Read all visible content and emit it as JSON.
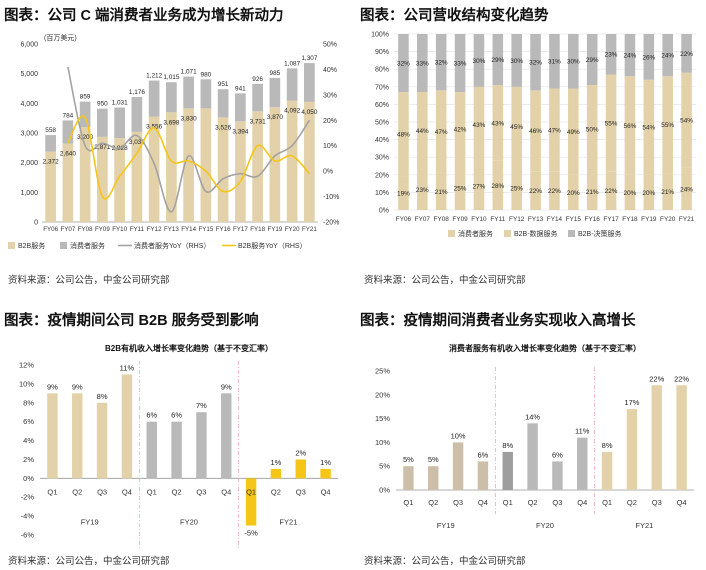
{
  "colors": {
    "beige": "#E3D2A9",
    "grey": "#B9B9B9",
    "grey_line": "#A3A3A3",
    "yellow": "#F5C518",
    "tan": "#CDBEA9",
    "darkgrey": "#9E9E9E",
    "axis": "#999999",
    "grid": "#E6E6E6"
  },
  "panels": [
    {
      "title": "图表：公司 C 端消费者业务成为增长新动力",
      "source": "资料来源：公司公告，中金公司研究部"
    },
    {
      "title": "图表：公司营收结构变化趋势",
      "source": "资料来源：公司公告，中金公司研究部"
    },
    {
      "title": "图表：疫情期间公司 B2B 服务受到影响",
      "source": "资料来源：公司公告，中金公司研究部"
    },
    {
      "title": "图表：疫情期间消费者业务实现收入高增长",
      "source": "资料来源：公司公告，中金公司研究部"
    }
  ],
  "chart_data": [
    {
      "type": "bar",
      "title": "",
      "unit_label": "(百万美元)",
      "categories": [
        "FY06",
        "FY07",
        "FY08",
        "FY09",
        "FY10",
        "FY11",
        "FY12",
        "FY13",
        "FY14",
        "FY15",
        "FY16",
        "FY17",
        "FY18",
        "FY19",
        "FY20",
        "FY21"
      ],
      "stacked": true,
      "series": [
        {
          "name": "B2B服务",
          "values": [
            2372,
            2640,
            3200,
            2871,
            2828,
            3038,
            3556,
            3698,
            3830,
            3830,
            3526,
            3394,
            3731,
            3870,
            4092,
            4050
          ]
        },
        {
          "name": "消费者服务",
          "values": [
            558,
            784,
            859,
            950,
            1031,
            1176,
            1212,
            1015,
            1071,
            980,
            951,
            941,
            926,
            985,
            1087,
            1307
          ]
        }
      ],
      "bar_labels_top": [
        "558",
        "784",
        "859",
        "950",
        "1,031",
        "1,176",
        "1,212",
        "1,015",
        "1,071",
        "980",
        "951",
        "941",
        "926",
        "985",
        "1,087",
        "1,307"
      ],
      "bar_labels_inner": [
        "2,372",
        "2,640",
        "3,200",
        "2,871",
        "2,828",
        "3,038",
        "3,556",
        "3,698",
        "3,830",
        "",
        "3,526",
        "3,394",
        "3,731",
        "3,870",
        "4,092",
        "4,050"
      ],
      "lines": [
        {
          "name": "消费者服务YoY（RHS）",
          "values": [
            null,
            41,
            10,
            11,
            9,
            14,
            3,
            -16,
            6,
            -8,
            -3,
            -1,
            -2,
            6,
            10,
            20
          ]
        },
        {
          "name": "B2B服务YoY（RHS）",
          "values": [
            null,
            11,
            21,
            -10,
            -2,
            7,
            17,
            4,
            4,
            0,
            -8,
            -4,
            10,
            4,
            6,
            -1
          ]
        }
      ],
      "y_left": {
        "min": 0,
        "max": 6000,
        "step": 1000,
        "ticks": [
          "0",
          "1,000",
          "2,000",
          "3,000",
          "4,000",
          "5,000",
          "6,000"
        ]
      },
      "y_right": {
        "min": -20,
        "max": 50,
        "step": 10,
        "ticks": [
          "-20%",
          "-10%",
          "0%",
          "10%",
          "20%",
          "30%",
          "40%",
          "50%"
        ]
      },
      "legend": [
        "B2B服务",
        "消费者服务",
        "消费者服务YoY（RHS）",
        "B2B服务YoY（RHS）"
      ]
    },
    {
      "type": "bar",
      "title": "",
      "stacked_percent": true,
      "categories": [
        "FY06",
        "FY07",
        "FY08",
        "FY09",
        "FY10",
        "FY11",
        "FY12",
        "FY13",
        "FY14",
        "FY15",
        "FY16",
        "FY17",
        "FY18",
        "FY19",
        "FY20",
        "FY21"
      ],
      "series": [
        {
          "name": "消费者服务",
          "values": [
            19,
            23,
            21,
            25,
            27,
            28,
            25,
            22,
            22,
            20,
            21,
            22,
            20,
            20,
            21,
            24
          ]
        },
        {
          "name": "B2B-数据服务",
          "values": [
            48,
            44,
            47,
            42,
            43,
            43,
            45,
            46,
            47,
            49,
            50,
            55,
            56,
            54,
            55,
            54
          ]
        },
        {
          "name": "B2B-决策服务",
          "values": [
            32,
            33,
            32,
            33,
            30,
            29,
            30,
            32,
            31,
            30,
            29,
            23,
            24,
            26,
            24,
            22
          ]
        }
      ],
      "y": {
        "min": 0,
        "max": 100,
        "step": 10,
        "ticks": [
          "0%",
          "10%",
          "20%",
          "30%",
          "40%",
          "50%",
          "60%",
          "70%",
          "80%",
          "90%",
          "100%"
        ]
      },
      "legend": [
        "消费者服务",
        "B2B-数据服务",
        "B2B-决策服务"
      ]
    },
    {
      "type": "bar",
      "title": "B2B有机收入增长率变化趋势（基于不变汇率）",
      "categories": [
        "Q1",
        "Q2",
        "Q3",
        "Q4",
        "Q1",
        "Q2",
        "Q3",
        "Q4",
        "Q1",
        "Q2",
        "Q3",
        "Q4"
      ],
      "groups": [
        "FY19",
        "FY20",
        "FY21"
      ],
      "values": [
        9,
        9,
        8,
        11,
        6,
        6,
        7,
        9,
        -5,
        1,
        2,
        1
      ],
      "labels": [
        "9%",
        "9%",
        "8%",
        "11%",
        "6%",
        "6%",
        "7%",
        "9%",
        "-5%",
        "1%",
        "2%",
        "1%"
      ],
      "y": {
        "min": -6,
        "max": 12,
        "step": 2,
        "ticks": [
          "-6%",
          "-4%",
          "-2%",
          "0%",
          "2%",
          "4%",
          "6%",
          "8%",
          "10%",
          "12%"
        ]
      }
    },
    {
      "type": "bar",
      "title": "消费者服务有机收入增长率变化趋势（基于不变汇率）",
      "categories": [
        "Q1",
        "Q2",
        "Q3",
        "Q4",
        "Q1",
        "Q2",
        "Q3",
        "Q4",
        "Q1",
        "Q2",
        "Q3",
        "Q4"
      ],
      "groups": [
        "FY19",
        "FY20",
        "FY21"
      ],
      "values": [
        5,
        5,
        10,
        6,
        8,
        14,
        6,
        11,
        8,
        17,
        22,
        22
      ],
      "labels": [
        "5%",
        "5%",
        "10%",
        "6%",
        "8%",
        "14%",
        "6%",
        "11%",
        "8%",
        "17%",
        "22%",
        "22%"
      ],
      "y": {
        "min": 0,
        "max": 25,
        "step": 5,
        "ticks": [
          "0%",
          "5%",
          "10%",
          "15%",
          "20%",
          "25%"
        ]
      }
    }
  ]
}
